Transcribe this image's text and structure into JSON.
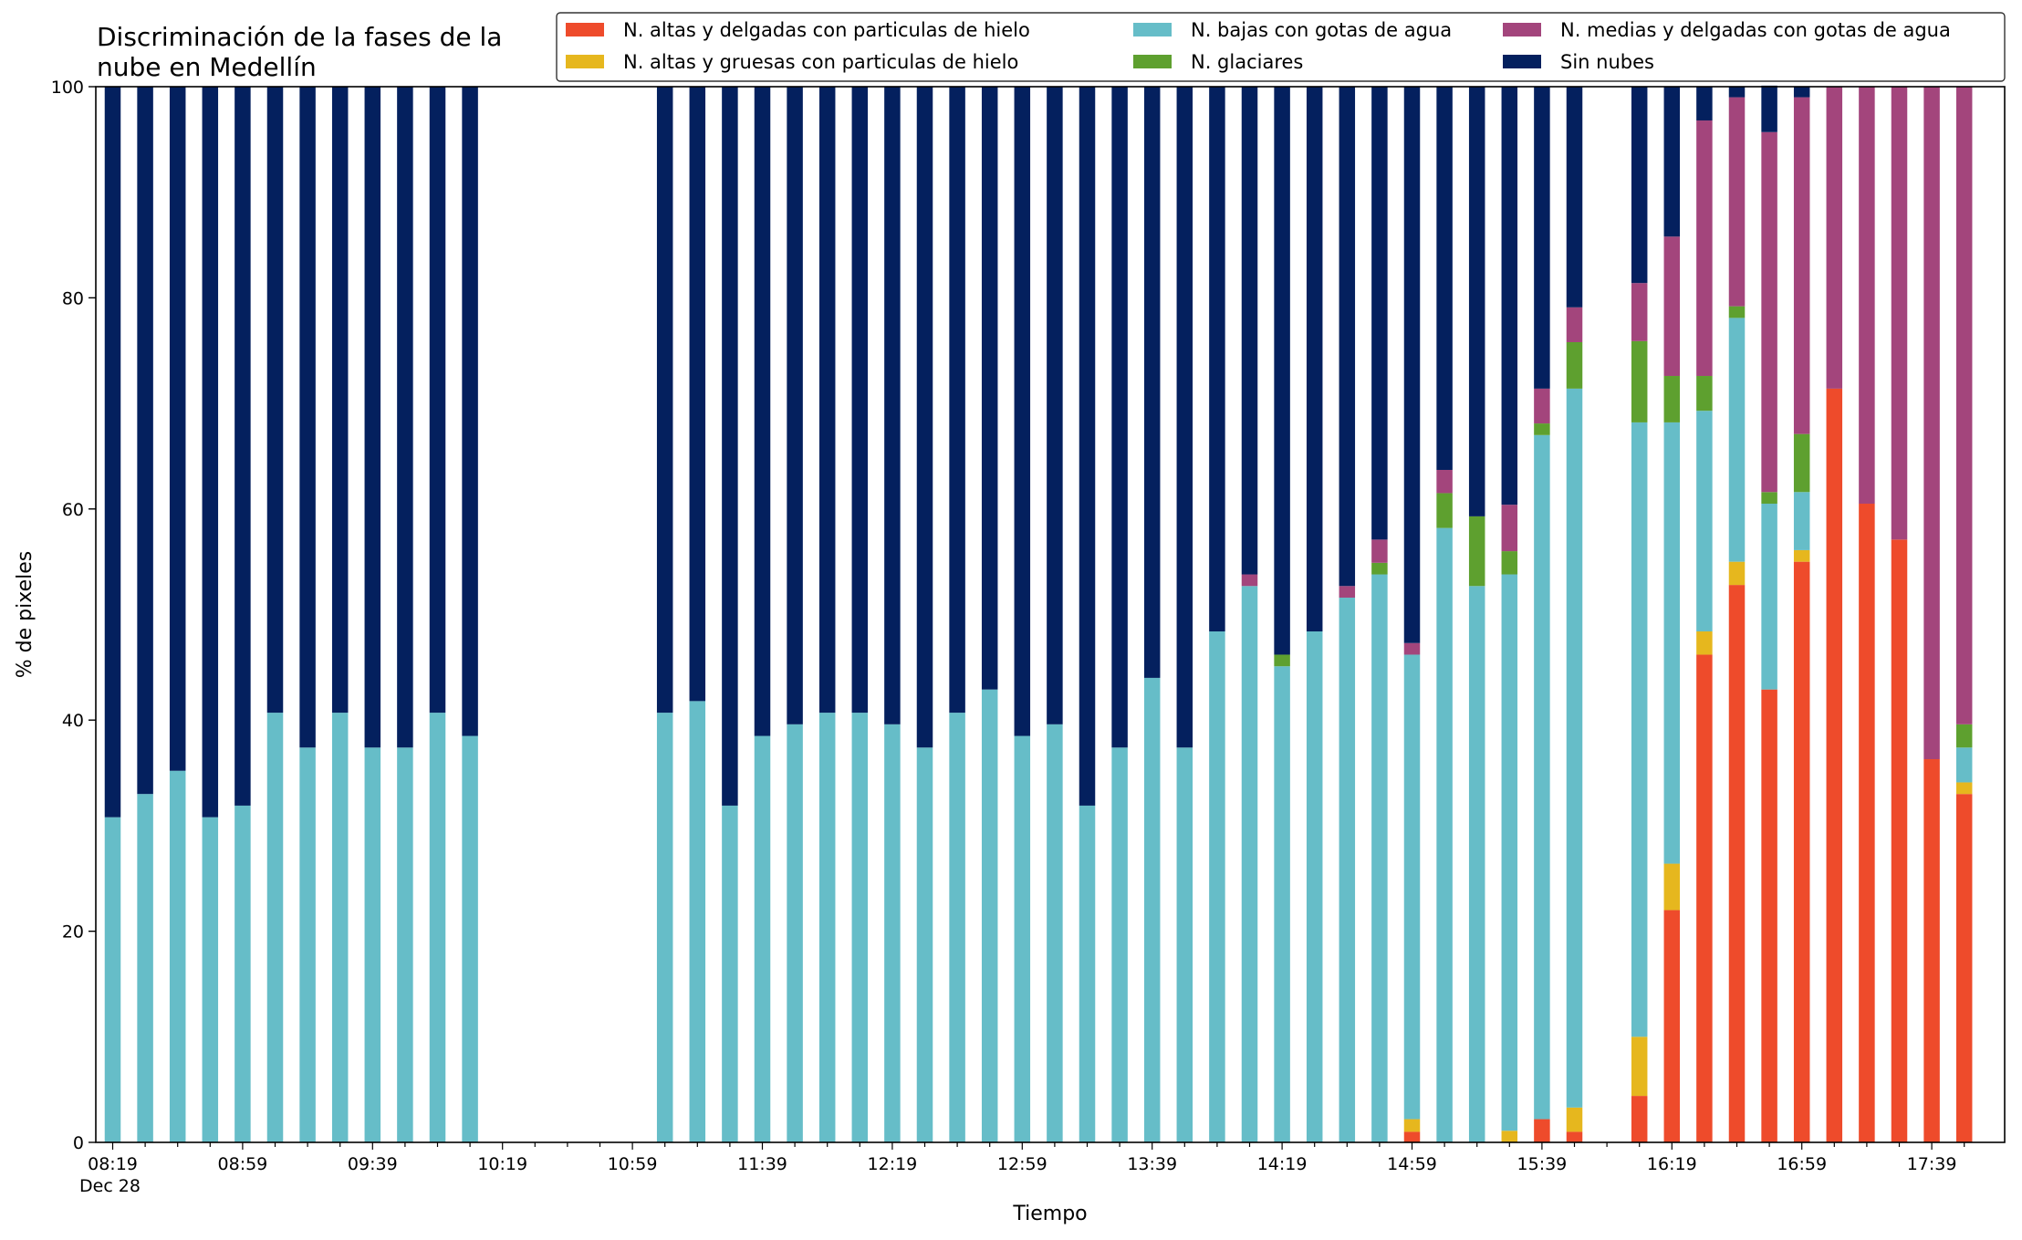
{
  "chart_data": {
    "type": "bar",
    "stacked": true,
    "title": "Discriminación de la fases de la\nnube en Medellín",
    "xlabel": "Tiempo",
    "ylabel": "% de pixeles",
    "ylim": [
      0,
      100
    ],
    "yticks": [
      0,
      20,
      40,
      60,
      80,
      100
    ],
    "x_tick_labels": [
      "08:19",
      "08:59",
      "09:39",
      "10:19",
      "10:59",
      "11:39",
      "12:19",
      "12:59",
      "13:39",
      "14:19",
      "14:59",
      "15:39",
      "16:19",
      "16:59",
      "17:39"
    ],
    "x_tick_sublabel": "Dec 28",
    "legend_position": "top-right",
    "grid": false,
    "categories": [
      "08:19",
      "08:29",
      "08:39",
      "08:49",
      "08:59",
      "09:09",
      "09:19",
      "09:29",
      "09:39",
      "09:49",
      "09:59",
      "10:09",
      "10:19",
      "10:29",
      "10:39",
      "10:49",
      "10:59",
      "11:09",
      "11:19",
      "11:29",
      "11:39",
      "11:49",
      "11:59",
      "12:09",
      "12:19",
      "12:29",
      "12:39",
      "12:49",
      "12:59",
      "13:09",
      "13:19",
      "13:29",
      "13:39",
      "13:49",
      "13:59",
      "14:09",
      "14:19",
      "14:29",
      "14:39",
      "14:49",
      "14:59",
      "15:09",
      "15:19",
      "15:29",
      "15:39",
      "15:49",
      "15:59",
      "16:09",
      "16:19",
      "16:29",
      "16:39",
      "16:49",
      "16:59",
      "17:09",
      "17:19",
      "17:29",
      "17:39",
      "17:49"
    ],
    "series": [
      {
        "name": "N. altas y delgadas con particulas de hielo",
        "color": "#ee4b2b",
        "values": [
          0,
          0,
          0,
          0,
          0,
          0,
          0,
          0,
          0,
          0,
          0,
          0,
          null,
          null,
          null,
          null,
          null,
          0,
          0,
          0,
          0,
          0,
          0,
          0,
          0,
          0,
          0,
          0,
          0,
          0,
          0,
          0,
          0,
          0,
          0,
          0,
          0,
          0,
          0,
          0,
          1,
          0,
          0,
          0,
          2.2,
          1,
          null,
          4.4,
          22,
          46.2,
          52.8,
          42.9,
          55,
          71.4,
          60.5,
          57.1,
          36.3,
          33
        ]
      },
      {
        "name": "N. altas y gruesas con particulas de hielo",
        "color": "#e6b71e",
        "values": [
          0,
          0,
          0,
          0,
          0,
          0,
          0,
          0,
          0,
          0,
          0,
          0,
          null,
          null,
          null,
          null,
          null,
          0,
          0,
          0,
          0,
          0,
          0,
          0,
          0,
          0,
          0,
          0,
          0,
          0,
          0,
          0,
          0,
          0,
          0,
          0,
          0,
          0,
          0,
          0,
          1.2,
          0,
          0,
          1.1,
          0,
          2.3,
          null,
          5.6,
          4.4,
          2.2,
          2.2,
          0,
          1.1,
          0,
          0,
          0,
          0,
          1.1
        ]
      },
      {
        "name": "N. bajas con gotas de agua",
        "color": "#66bdc8",
        "values": [
          30.8,
          33,
          35.2,
          30.8,
          31.9,
          40.7,
          37.4,
          40.7,
          37.4,
          37.4,
          40.7,
          38.5,
          null,
          null,
          null,
          null,
          null,
          40.7,
          41.8,
          31.9,
          38.5,
          39.6,
          40.7,
          40.7,
          39.6,
          37.4,
          40.7,
          42.9,
          38.5,
          39.6,
          31.9,
          37.4,
          44,
          37.4,
          48.4,
          52.7,
          45.1,
          48.4,
          51.6,
          53.8,
          44,
          58.2,
          52.7,
          52.7,
          64.8,
          68.1,
          null,
          58.2,
          41.8,
          20.9,
          23.1,
          17.6,
          5.5,
          0,
          0,
          0,
          0,
          3.3
        ]
      },
      {
        "name": "N. glaciares",
        "color": "#5ea02f",
        "values": [
          0,
          0,
          0,
          0,
          0,
          0,
          0,
          0,
          0,
          0,
          0,
          0,
          null,
          null,
          null,
          null,
          null,
          0,
          0,
          0,
          0,
          0,
          0,
          0,
          0,
          0,
          0,
          0,
          0,
          0,
          0,
          0,
          0,
          0,
          0,
          0,
          1.1,
          0,
          0,
          1.1,
          0,
          3.3,
          6.6,
          2.2,
          1.1,
          4.4,
          null,
          7.7,
          4.4,
          3.3,
          1.1,
          1.1,
          5.5,
          0,
          0,
          0,
          0,
          2.2
        ]
      },
      {
        "name": "N. medias y delgadas con gotas de agua",
        "color": "#a3457c",
        "values": [
          0,
          0,
          0,
          0,
          0,
          0,
          0,
          0,
          0,
          0,
          0,
          0,
          null,
          null,
          null,
          null,
          null,
          0,
          0,
          0,
          0,
          0,
          0,
          0,
          0,
          0,
          0,
          0,
          0,
          0,
          0,
          0,
          0,
          0,
          0,
          1.1,
          0,
          0,
          1.1,
          2.2,
          1.1,
          2.2,
          0,
          4.4,
          3.3,
          3.3,
          null,
          5.5,
          13.2,
          24.2,
          19.8,
          34.1,
          31.9,
          28.6,
          39.5,
          42.9,
          63.7,
          60.4
        ]
      },
      {
        "name": "Sin nubes",
        "color": "#04205e",
        "values": [
          69.2,
          67,
          64.8,
          69.2,
          68.1,
          59.3,
          62.6,
          59.3,
          62.6,
          62.6,
          59.3,
          61.5,
          null,
          null,
          null,
          null,
          null,
          59.3,
          58.2,
          68.1,
          61.5,
          60.4,
          59.3,
          59.3,
          60.4,
          62.6,
          59.3,
          57.1,
          61.5,
          60.4,
          68.1,
          62.6,
          56,
          62.6,
          51.6,
          46.2,
          53.8,
          51.6,
          47.3,
          42.9,
          52.7,
          36.3,
          40.7,
          39.6,
          28.6,
          20.9,
          null,
          18.6,
          14.2,
          3.2,
          1,
          4.4,
          1,
          0,
          0,
          0,
          0,
          0
        ]
      }
    ]
  }
}
